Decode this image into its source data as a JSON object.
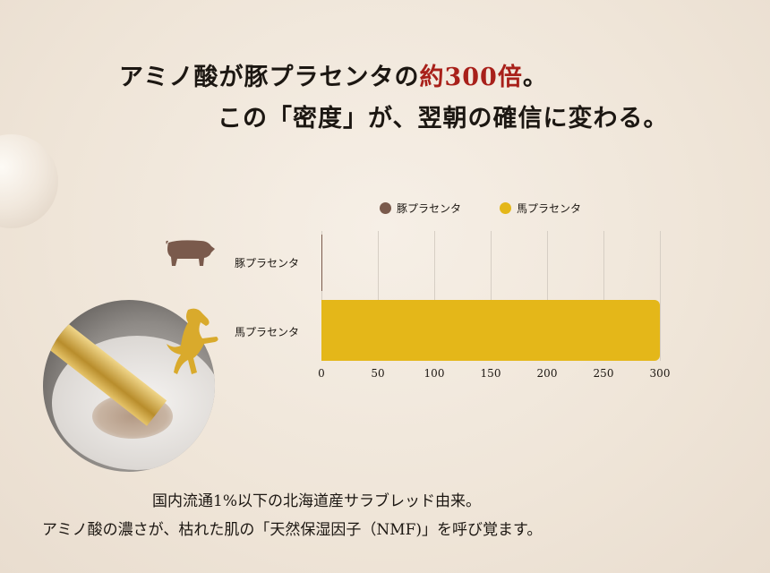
{
  "headline": {
    "line1_prefix": "アミノ酸が豚プラセンタの",
    "line1_highlight": "約300倍",
    "line1_suffix": "。",
    "line2": "この「密度」が、翌朝の確信に変わる。",
    "highlight_color": "#a8201a"
  },
  "chart_data": {
    "type": "bar",
    "orientation": "horizontal",
    "categories": [
      "豚プラセンタ",
      "馬プラセンタ"
    ],
    "series": [
      {
        "name": "豚プラセンタ",
        "values": [
          1,
          null
        ],
        "color": "#7a5a4c"
      },
      {
        "name": "馬プラセンタ",
        "values": [
          null,
          300
        ],
        "color": "#e4b719"
      }
    ],
    "xlim": [
      0,
      300
    ],
    "xticks": [
      "0",
      "50",
      "100",
      "150",
      "200",
      "250",
      "300"
    ],
    "grid": true,
    "legend_position": "top"
  },
  "icons": {
    "pig": "pig-icon",
    "horse": "horse-icon"
  },
  "footer": {
    "line1": "国内流通1%以下の北海道産サラブレッド由来。",
    "line2": "アミノ酸の濃さが、枯れた肌の「天然保湿因子（NMF)」を呼び覚ます。"
  }
}
